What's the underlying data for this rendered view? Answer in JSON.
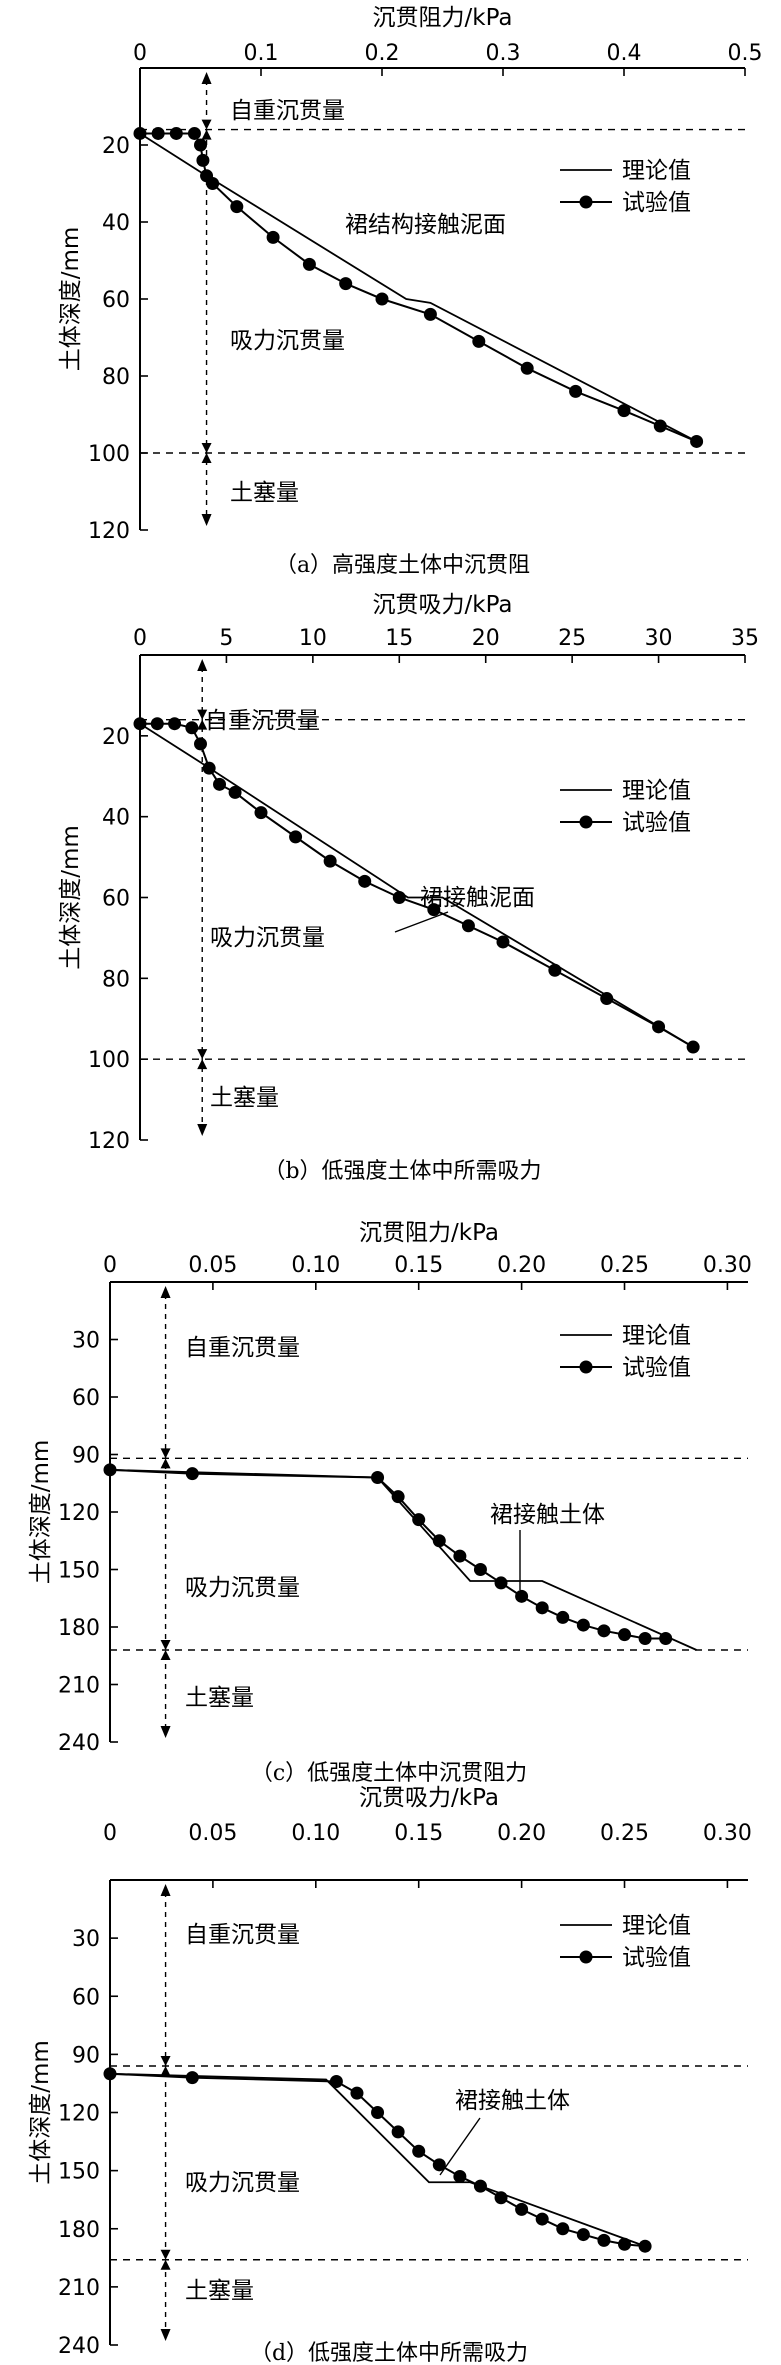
{
  "figure": {
    "legend": {
      "theory": "理论值",
      "test": "试验值"
    }
  },
  "chart_data": [
    {
      "type": "line",
      "caption": "（a）高强度土体中沉贯阻",
      "xlabel": "沉贯阻力/kPa",
      "ylabel": "土体深度/mm",
      "xlim": [
        0,
        0.5
      ],
      "ylim": [
        0,
        120
      ],
      "xticks": [
        0,
        0.1,
        0.2,
        0.3,
        0.4,
        0.5
      ],
      "xtick_labels": [
        "0",
        "0.1",
        "0.2",
        "0.3",
        "0.4",
        "0.5"
      ],
      "yticks": [
        20,
        40,
        60,
        80,
        100,
        120
      ],
      "ytick_labels": [
        "20",
        "40",
        "60",
        "80",
        "100",
        "120"
      ],
      "hlines": [
        16,
        100
      ],
      "vline_x": 0.055,
      "zones": [
        "自重沉贯量",
        "吸力沉贯量",
        "土塞量"
      ],
      "annotation": "裙结构接触泥面",
      "series": [
        {
          "name": "理论值",
          "x": [
            0,
            0.05,
            0.22,
            0.24,
            0.46
          ],
          "y": [
            17,
            27,
            60,
            61,
            97
          ]
        },
        {
          "name": "试验值",
          "x": [
            0,
            0.015,
            0.03,
            0.045,
            0.05,
            0.052,
            0.055,
            0.06,
            0.08,
            0.11,
            0.14,
            0.17,
            0.2,
            0.24,
            0.28,
            0.32,
            0.36,
            0.4,
            0.43,
            0.46
          ],
          "y": [
            17,
            17,
            17,
            17,
            20,
            24,
            28,
            30,
            36,
            44,
            51,
            56,
            60,
            64,
            71,
            78,
            84,
            89,
            93,
            97
          ]
        }
      ]
    },
    {
      "type": "line",
      "caption": "（b）低强度土体中所需吸力",
      "xlabel": "沉贯吸力/kPa",
      "ylabel": "土体深度/mm",
      "xlim": [
        0,
        35
      ],
      "ylim": [
        0,
        120
      ],
      "xticks": [
        0,
        5,
        10,
        15,
        20,
        25,
        30,
        35
      ],
      "xtick_labels": [
        "0",
        "5",
        "10",
        "15",
        "20",
        "25",
        "30",
        "35"
      ],
      "yticks": [
        20,
        40,
        60,
        80,
        100,
        120
      ],
      "ytick_labels": [
        "20",
        "40",
        "60",
        "80",
        "100",
        "120"
      ],
      "hlines": [
        16,
        100
      ],
      "vline_x": 3.6,
      "zones": [
        "自重沉贯量",
        "吸力沉贯量",
        "土塞量"
      ],
      "annotation": "裙接触泥面",
      "series": [
        {
          "name": "理论值",
          "x": [
            0,
            3.3,
            15.5,
            17.5,
            32
          ],
          "y": [
            17,
            26,
            60,
            60,
            97
          ]
        },
        {
          "name": "试验值",
          "x": [
            0,
            1,
            2,
            3,
            3.5,
            4,
            4.6,
            5.5,
            7,
            9,
            11,
            13,
            15,
            17,
            19,
            21,
            24,
            27,
            30,
            32
          ],
          "y": [
            17,
            17,
            17,
            18,
            22,
            28,
            32,
            34,
            39,
            45,
            51,
            56,
            60,
            63,
            67,
            71,
            78,
            85,
            92,
            97
          ]
        }
      ]
    },
    {
      "type": "line",
      "caption": "（c）低强度土体中沉贯阻力",
      "xlabel": "沉贯阻力/kPa",
      "ylabel": "土体深度/mm",
      "xlim": [
        0,
        0.31
      ],
      "ylim": [
        0,
        240
      ],
      "xticks": [
        0,
        0.05,
        0.1,
        0.15,
        0.2,
        0.25,
        0.3
      ],
      "xtick_labels": [
        "0",
        "0.05",
        "0.10",
        "0.15",
        "0.20",
        "0.25",
        "0.30"
      ],
      "yticks": [
        30,
        60,
        90,
        120,
        150,
        180,
        210,
        240
      ],
      "ytick_labels": [
        "30",
        "60",
        "90",
        "120",
        "150",
        "180",
        "210",
        "240"
      ],
      "hlines": [
        92,
        192
      ],
      "vline_x": 0.027,
      "zones": [
        "自重沉贯量",
        "吸力沉贯量",
        "土塞量"
      ],
      "annotation": "裙接触土体",
      "series": [
        {
          "name": "理论值",
          "x": [
            0,
            0.13,
            0.175,
            0.21,
            0.285
          ],
          "y": [
            98,
            102,
            156,
            156,
            192
          ]
        },
        {
          "name": "试验值",
          "x": [
            0,
            0.04,
            0.13,
            0.14,
            0.15,
            0.16,
            0.17,
            0.18,
            0.19,
            0.2,
            0.21,
            0.22,
            0.23,
            0.24,
            0.25,
            0.26,
            0.27
          ],
          "y": [
            98,
            100,
            102,
            112,
            124,
            135,
            143,
            150,
            157,
            164,
            170,
            175,
            179,
            182,
            184,
            186,
            186
          ]
        }
      ]
    },
    {
      "type": "line",
      "caption": "（d）低强度土体中所需吸力",
      "xlabel": "沉贯吸力/kPa",
      "ylabel": "土体深度/mm",
      "xlim": [
        0,
        0.31
      ],
      "ylim": [
        0,
        240
      ],
      "xticks": [
        0,
        0.05,
        0.1,
        0.15,
        0.2,
        0.25,
        0.3
      ],
      "xtick_labels": [
        "0",
        "0.05",
        "0.10",
        "0.15",
        "0.20",
        "0.25",
        "0.30"
      ],
      "yticks": [
        30,
        60,
        90,
        120,
        150,
        180,
        210,
        240
      ],
      "ytick_labels": [
        "30",
        "60",
        "90",
        "120",
        "150",
        "180",
        "210",
        "240"
      ],
      "hlines": [
        96,
        196
      ],
      "vline_x": 0.027,
      "zones": [
        "自重沉贯量",
        "吸力沉贯量",
        "土塞量"
      ],
      "annotation": "裙接触土体",
      "series": [
        {
          "name": "理论值",
          "x": [
            0,
            0.105,
            0.155,
            0.175,
            0.26
          ],
          "y": [
            100,
            103,
            156,
            156,
            189
          ]
        },
        {
          "name": "试验值",
          "x": [
            0,
            0.04,
            0.11,
            0.12,
            0.13,
            0.14,
            0.15,
            0.16,
            0.17,
            0.18,
            0.19,
            0.2,
            0.21,
            0.22,
            0.23,
            0.24,
            0.25,
            0.26
          ],
          "y": [
            100,
            102,
            104,
            110,
            120,
            130,
            140,
            147,
            153,
            158,
            164,
            170,
            175,
            180,
            183,
            186,
            188,
            189
          ]
        }
      ]
    }
  ]
}
